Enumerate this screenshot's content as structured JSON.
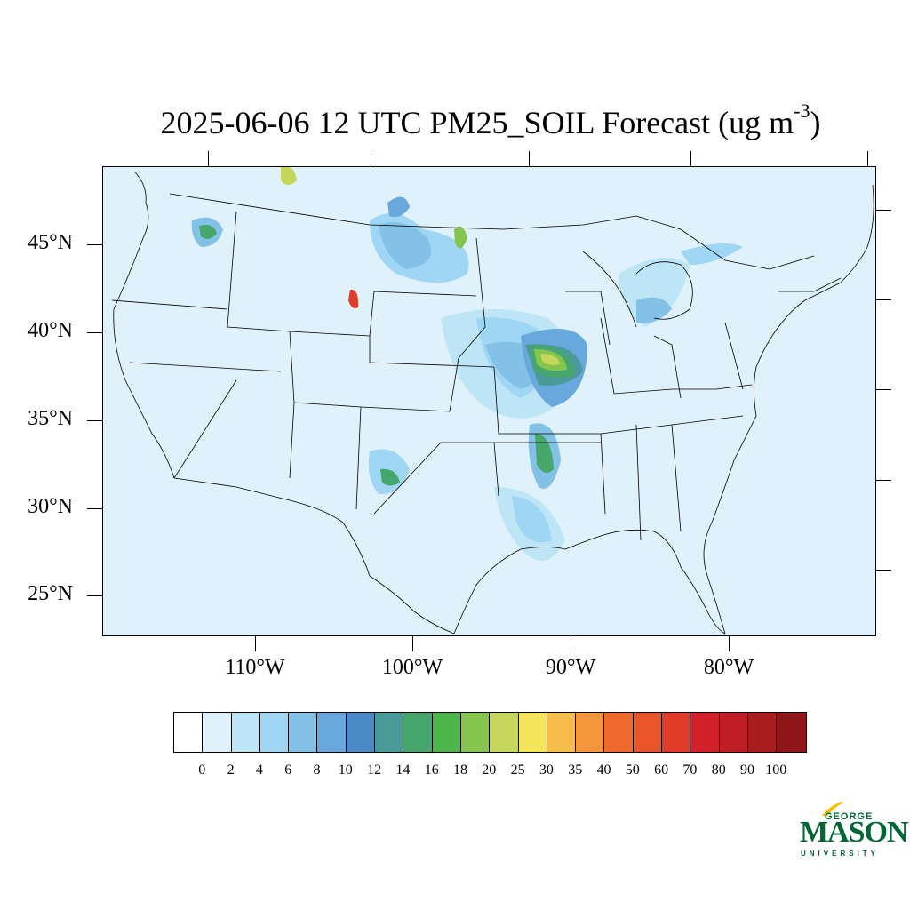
{
  "title": {
    "main": "2025-06-06 12 UTC PM25_SOIL Forecast (ug m",
    "superscript": "-3",
    "close": ")"
  },
  "map": {
    "background_color": "#dff1fa",
    "lat_labels": [
      "45°N",
      "40°N",
      "35°N",
      "30°N",
      "25°N"
    ],
    "lon_labels": [
      "110°W",
      "100°W",
      "90°W",
      "80°W"
    ]
  },
  "colorbar": {
    "colors": [
      "#ffffff",
      "#dff1fa",
      "#bde5f6",
      "#9fd6f3",
      "#84c1e7",
      "#68a8dc",
      "#4a8bc8",
      "#4a9a9a",
      "#47a66c",
      "#4cb64a",
      "#86c54d",
      "#c4d75a",
      "#f5e55a",
      "#f7bd4a",
      "#f5953c",
      "#f06a2e",
      "#e95428",
      "#e03c28",
      "#d22028",
      "#be1e24",
      "#a81c20",
      "#8f1519"
    ],
    "labels": [
      "0",
      "2",
      "4",
      "6",
      "8",
      "10",
      "12",
      "14",
      "16",
      "18",
      "20",
      "25",
      "30",
      "35",
      "40",
      "50",
      "60",
      "70",
      "80",
      "90",
      "100"
    ]
  },
  "logo": {
    "line1": "GEORGE",
    "line2": "MASON",
    "line3": "UNIVERSITY",
    "color": "#006633",
    "accent": "#f2c200"
  }
}
